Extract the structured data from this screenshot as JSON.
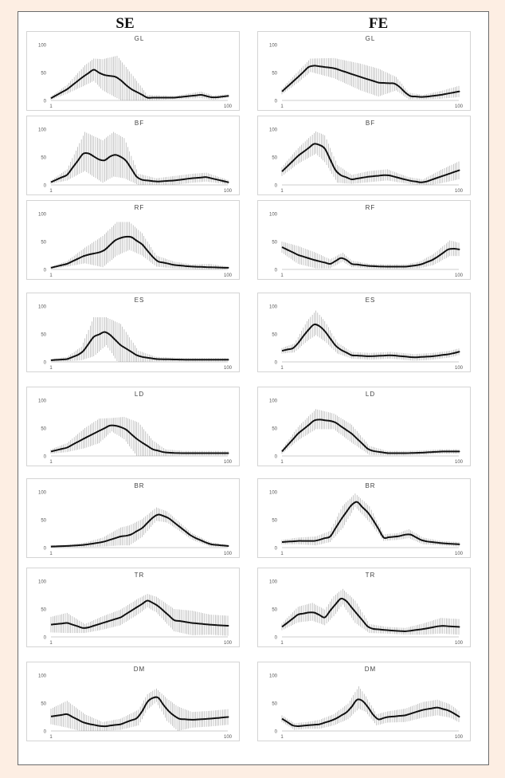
{
  "columns": [
    "SE",
    "FE"
  ],
  "chart_data": [
    {
      "type": "line",
      "column": "SE",
      "title": "GL",
      "ylim": [
        0,
        100
      ],
      "yticks": [
        "100",
        "50",
        "0"
      ],
      "xticks": [
        "1",
        "100"
      ],
      "series": [
        {
          "x": [
            1,
            10,
            20,
            25,
            30,
            38,
            45,
            55,
            70,
            85,
            92,
            100
          ],
          "y": [
            4,
            20,
            45,
            55,
            46,
            42,
            22,
            5,
            5,
            10,
            5,
            8
          ],
          "err": [
            3,
            8,
            18,
            20,
            28,
            38,
            30,
            5,
            3,
            6,
            4,
            3
          ]
        }
      ]
    },
    {
      "type": "line",
      "column": "FE",
      "title": "GL",
      "ylim": [
        0,
        100
      ],
      "yticks": [
        "100",
        "50",
        "0"
      ],
      "xticks": [
        "1",
        "100"
      ],
      "series": [
        {
          "x": [
            1,
            10,
            17,
            30,
            45,
            55,
            65,
            72,
            80,
            90,
            100
          ],
          "y": [
            16,
            42,
            63,
            58,
            42,
            32,
            30,
            8,
            6,
            10,
            16
          ],
          "err": [
            5,
            10,
            12,
            18,
            24,
            25,
            12,
            6,
            4,
            7,
            10
          ]
        }
      ]
    },
    {
      "type": "line",
      "column": "SE",
      "title": "BF",
      "ylim": [
        0,
        100
      ],
      "yticks": [
        "100",
        "50",
        "0"
      ],
      "xticks": [
        "1",
        "100"
      ],
      "series": [
        {
          "x": [
            1,
            10,
            20,
            30,
            36,
            42,
            50,
            60,
            70,
            80,
            88,
            100
          ],
          "y": [
            5,
            18,
            60,
            42,
            55,
            48,
            10,
            6,
            8,
            12,
            14,
            5
          ],
          "err": [
            3,
            10,
            35,
            38,
            40,
            36,
            10,
            6,
            8,
            8,
            8,
            4
          ]
        }
      ]
    },
    {
      "type": "line",
      "column": "FE",
      "title": "BF",
      "ylim": [
        0,
        100
      ],
      "yticks": [
        "100",
        "50",
        "0"
      ],
      "xticks": [
        "1",
        "100"
      ],
      "series": [
        {
          "x": [
            1,
            10,
            20,
            25,
            32,
            40,
            50,
            60,
            72,
            80,
            90,
            100
          ],
          "y": [
            24,
            52,
            76,
            65,
            20,
            10,
            15,
            18,
            8,
            4,
            15,
            26
          ],
          "err": [
            8,
            14,
            20,
            24,
            16,
            8,
            10,
            10,
            6,
            6,
            12,
            16
          ]
        }
      ]
    },
    {
      "type": "line",
      "column": "SE",
      "title": "RF",
      "ylim": [
        0,
        100
      ],
      "yticks": [
        "100",
        "50",
        "0"
      ],
      "xticks": [
        "1",
        "100"
      ],
      "series": [
        {
          "x": [
            1,
            10,
            20,
            30,
            38,
            45,
            52,
            60,
            70,
            80,
            90,
            100
          ],
          "y": [
            3,
            10,
            25,
            32,
            55,
            60,
            45,
            15,
            8,
            5,
            4,
            3
          ],
          "err": [
            2,
            5,
            14,
            28,
            30,
            25,
            20,
            10,
            6,
            4,
            6,
            2
          ]
        }
      ]
    },
    {
      "type": "line",
      "column": "FE",
      "title": "RF",
      "ylim": [
        0,
        100
      ],
      "yticks": [
        "100",
        "50",
        "0"
      ],
      "xticks": [
        "1",
        "100"
      ],
      "series": [
        {
          "x": [
            1,
            10,
            20,
            28,
            35,
            40,
            50,
            60,
            70,
            78,
            86,
            95,
            100
          ],
          "y": [
            40,
            26,
            16,
            10,
            22,
            10,
            6,
            5,
            5,
            8,
            18,
            38,
            36
          ],
          "err": [
            10,
            16,
            14,
            8,
            8,
            6,
            4,
            4,
            4,
            6,
            10,
            14,
            12
          ]
        }
      ]
    },
    {
      "type": "line",
      "column": "SE",
      "title": "ES",
      "ylim": [
        0,
        100
      ],
      "yticks": [
        "100",
        "50",
        "0"
      ],
      "xticks": [
        "1",
        "100"
      ],
      "series": [
        {
          "x": [
            1,
            10,
            18,
            25,
            32,
            40,
            50,
            60,
            75,
            90,
            100
          ],
          "y": [
            3,
            5,
            15,
            45,
            55,
            30,
            10,
            5,
            4,
            4,
            4
          ],
          "err": [
            2,
            4,
            12,
            35,
            25,
            38,
            10,
            4,
            3,
            3,
            3
          ]
        }
      ]
    },
    {
      "type": "line",
      "column": "FE",
      "title": "ES",
      "ylim": [
        0,
        100
      ],
      "yticks": [
        "100",
        "50",
        "0"
      ],
      "xticks": [
        "1",
        "100"
      ],
      "series": [
        {
          "x": [
            1,
            8,
            15,
            20,
            25,
            32,
            40,
            50,
            62,
            75,
            85,
            95,
            100
          ],
          "y": [
            20,
            25,
            55,
            70,
            55,
            25,
            12,
            10,
            12,
            8,
            10,
            14,
            18
          ],
          "err": [
            5,
            8,
            18,
            22,
            18,
            10,
            6,
            6,
            6,
            6,
            6,
            6,
            6
          ]
        }
      ]
    },
    {
      "type": "line",
      "column": "SE",
      "title": "LD",
      "ylim": [
        0,
        100
      ],
      "yticks": [
        "100",
        "50",
        "0"
      ],
      "xticks": [
        "1",
        "100"
      ],
      "series": [
        {
          "x": [
            1,
            10,
            20,
            28,
            35,
            42,
            50,
            58,
            65,
            75,
            88,
            100
          ],
          "y": [
            8,
            15,
            32,
            45,
            56,
            50,
            28,
            12,
            6,
            5,
            5,
            5
          ],
          "err": [
            4,
            8,
            18,
            22,
            12,
            20,
            32,
            16,
            6,
            4,
            4,
            4
          ]
        }
      ]
    },
    {
      "type": "line",
      "column": "FE",
      "title": "LD",
      "ylim": [
        0,
        100
      ],
      "yticks": [
        "100",
        "50",
        "0"
      ],
      "xticks": [
        "1",
        "100"
      ],
      "series": [
        {
          "x": [
            1,
            10,
            20,
            30,
            40,
            50,
            60,
            70,
            80,
            90,
            100
          ],
          "y": [
            8,
            40,
            66,
            62,
            40,
            10,
            5,
            5,
            6,
            8,
            8
          ],
          "err": [
            4,
            12,
            18,
            14,
            16,
            8,
            4,
            4,
            4,
            4,
            4
          ]
        }
      ]
    },
    {
      "type": "line",
      "column": "SE",
      "title": "BR",
      "ylim": [
        0,
        100
      ],
      "yticks": [
        "100",
        "50",
        "0"
      ],
      "xticks": [
        "1",
        "100"
      ],
      "series": [
        {
          "x": [
            1,
            10,
            20,
            30,
            40,
            45,
            52,
            60,
            66,
            72,
            80,
            90,
            100
          ],
          "y": [
            2,
            3,
            5,
            10,
            20,
            22,
            35,
            60,
            55,
            40,
            20,
            6,
            3
          ],
          "err": [
            2,
            2,
            4,
            8,
            16,
            18,
            16,
            12,
            10,
            8,
            6,
            4,
            2
          ]
        }
      ]
    },
    {
      "type": "line",
      "column": "FE",
      "title": "BR",
      "ylim": [
        0,
        100
      ],
      "yticks": [
        "100",
        "50",
        "0"
      ],
      "xticks": [
        "1",
        "100"
      ],
      "series": [
        {
          "x": [
            1,
            10,
            20,
            28,
            35,
            42,
            50,
            58,
            66,
            72,
            80,
            90,
            100
          ],
          "y": [
            10,
            12,
            12,
            20,
            55,
            85,
            60,
            18,
            20,
            25,
            12,
            8,
            6
          ],
          "err": [
            4,
            6,
            8,
            10,
            20,
            12,
            14,
            6,
            6,
            8,
            6,
            4,
            4
          ]
        }
      ]
    },
    {
      "type": "line",
      "column": "SE",
      "title": "TR",
      "ylim": [
        0,
        100
      ],
      "yticks": [
        "100",
        "50",
        "0"
      ],
      "xticks": [
        "1",
        "100"
      ],
      "series": [
        {
          "x": [
            1,
            10,
            20,
            30,
            40,
            50,
            55,
            60,
            70,
            80,
            90,
            100
          ],
          "y": [
            22,
            25,
            15,
            25,
            35,
            55,
            65,
            58,
            30,
            25,
            22,
            20
          ],
          "err": [
            14,
            18,
            8,
            12,
            14,
            14,
            12,
            14,
            20,
            22,
            18,
            18
          ]
        }
      ]
    },
    {
      "type": "line",
      "column": "FE",
      "title": "TR",
      "ylim": [
        0,
        100
      ],
      "yticks": [
        "100",
        "50",
        "0"
      ],
      "xticks": [
        "1",
        "100"
      ],
      "series": [
        {
          "x": [
            1,
            10,
            18,
            25,
            30,
            35,
            42,
            50,
            60,
            70,
            80,
            90,
            100
          ],
          "y": [
            18,
            40,
            45,
            35,
            55,
            72,
            45,
            15,
            12,
            10,
            14,
            20,
            18
          ],
          "err": [
            6,
            14,
            16,
            14,
            18,
            14,
            20,
            8,
            6,
            6,
            10,
            14,
            14
          ]
        }
      ]
    },
    {
      "type": "line",
      "column": "SE",
      "title": "DM",
      "ylim": [
        0,
        100
      ],
      "yticks": [
        "100",
        "50",
        "0"
      ],
      "xticks": [
        "1",
        "100"
      ],
      "series": [
        {
          "x": [
            1,
            10,
            20,
            30,
            40,
            50,
            55,
            60,
            66,
            72,
            80,
            90,
            100
          ],
          "y": [
            26,
            30,
            14,
            8,
            12,
            24,
            52,
            64,
            38,
            22,
            20,
            22,
            25
          ],
          "err": [
            14,
            24,
            16,
            8,
            10,
            14,
            14,
            12,
            20,
            22,
            14,
            14,
            14
          ]
        }
      ]
    },
    {
      "type": "line",
      "column": "FE",
      "title": "DM",
      "ylim": [
        0,
        100
      ],
      "yticks": [
        "100",
        "50",
        "0"
      ],
      "xticks": [
        "1",
        "100"
      ],
      "series": [
        {
          "x": [
            1,
            8,
            15,
            22,
            30,
            38,
            44,
            48,
            54,
            60,
            70,
            80,
            88,
            95,
            100
          ],
          "y": [
            22,
            8,
            10,
            12,
            20,
            35,
            60,
            48,
            20,
            25,
            28,
            38,
            42,
            36,
            26
          ],
          "err": [
            6,
            6,
            6,
            8,
            10,
            14,
            20,
            14,
            10,
            10,
            12,
            14,
            14,
            12,
            10
          ]
        }
      ]
    }
  ]
}
